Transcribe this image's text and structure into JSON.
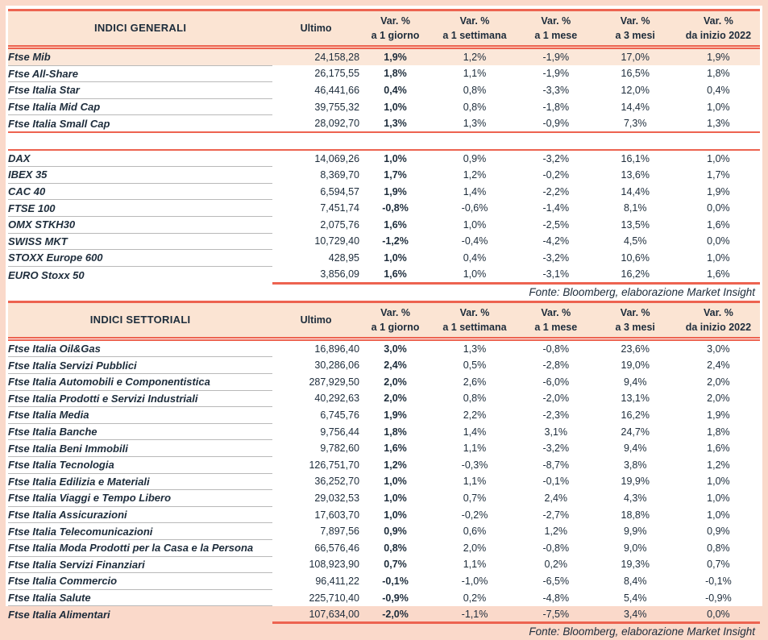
{
  "theme": {
    "accent_red": "#ed6350",
    "header_bg": "#fbe4d3",
    "highlight_row_bg": "#fbe7d9",
    "frame_bg": "#fad9ca",
    "text_color": "#1d2c3b",
    "row_separator_gray": "#b9b9b9"
  },
  "tables": [
    {
      "title": "INDICI GENERALI",
      "columns": [
        {
          "line1": "Ultimo",
          "line2": ""
        },
        {
          "line1": "Var. %",
          "line2": "a 1 giorno"
        },
        {
          "line1": "Var. %",
          "line2": "a 1 settimana"
        },
        {
          "line1": "Var. %",
          "line2": "a 1 mese"
        },
        {
          "line1": "Var. %",
          "line2": "a 3 mesi"
        },
        {
          "line1": "Var. %",
          "line2": "da inizio 2022"
        }
      ],
      "rows": [
        {
          "name": "Ftse Mib",
          "values": [
            "24,158,28",
            "1,9%",
            "1,2%",
            "-1,9%",
            "17,0%",
            "1,9%"
          ],
          "highlight": true
        },
        {
          "name": "Ftse All-Share",
          "values": [
            "26,175,55",
            "1,8%",
            "1,1%",
            "-1,9%",
            "16,5%",
            "1,8%"
          ]
        },
        {
          "name": "Ftse Italia Star",
          "values": [
            "46,441,66",
            "0,4%",
            "0,8%",
            "-3,3%",
            "12,0%",
            "0,4%"
          ]
        },
        {
          "name": "Ftse Italia Mid Cap",
          "values": [
            "39,755,32",
            "1,0%",
            "0,8%",
            "-1,8%",
            "14,4%",
            "1,0%"
          ]
        },
        {
          "name": "Ftse Italia Small Cap",
          "values": [
            "28,092,70",
            "1,3%",
            "1,3%",
            "-0,9%",
            "7,3%",
            "1,3%"
          ],
          "divider_after": true
        },
        {
          "name": "DAX",
          "values": [
            "14,069,26",
            "1,0%",
            "0,9%",
            "-3,2%",
            "16,1%",
            "1,0%"
          ]
        },
        {
          "name": "IBEX 35",
          "values": [
            "8,369,70",
            "1,7%",
            "1,2%",
            "-0,2%",
            "13,6%",
            "1,7%"
          ]
        },
        {
          "name": "CAC 40",
          "values": [
            "6,594,57",
            "1,9%",
            "1,4%",
            "-2,2%",
            "14,4%",
            "1,9%"
          ]
        },
        {
          "name": "FTSE 100",
          "values": [
            "7,451,74",
            "-0,8%",
            "-0,6%",
            "-1,4%",
            "8,1%",
            "0,0%"
          ]
        },
        {
          "name": "OMX STKH30",
          "values": [
            "2,075,76",
            "1,6%",
            "1,0%",
            "-2,5%",
            "13,5%",
            "1,6%"
          ]
        },
        {
          "name": "SWISS MKT",
          "values": [
            "10,729,40",
            "-1,2%",
            "-0,4%",
            "-4,2%",
            "4,5%",
            "0,0%"
          ]
        },
        {
          "name": "STOXX Europe 600",
          "values": [
            "428,95",
            "1,0%",
            "0,4%",
            "-3,2%",
            "10,6%",
            "1,0%"
          ]
        },
        {
          "name": "EURO Stoxx 50",
          "values": [
            "3,856,09",
            "1,6%",
            "1,0%",
            "-3,1%",
            "16,2%",
            "1,6%"
          ]
        }
      ],
      "source": "Fonte: Bloomberg, elaborazione Market Insight"
    },
    {
      "title": "INDICI SETTORIALI",
      "columns": [
        {
          "line1": "Ultimo",
          "line2": ""
        },
        {
          "line1": "Var. %",
          "line2": "a 1 giorno"
        },
        {
          "line1": "Var. %",
          "line2": "a 1 settimana"
        },
        {
          "line1": "Var. %",
          "line2": "a 1 mese"
        },
        {
          "line1": "Var. %",
          "line2": "a 3 mesi"
        },
        {
          "line1": "Var. %",
          "line2": "da inizio 2022"
        }
      ],
      "rows": [
        {
          "name": "Ftse Italia Oil&Gas",
          "values": [
            "16,896,40",
            "3,0%",
            "1,3%",
            "-0,8%",
            "23,6%",
            "3,0%"
          ]
        },
        {
          "name": "Ftse Italia Servizi Pubblici",
          "values": [
            "30,286,06",
            "2,4%",
            "0,5%",
            "-2,8%",
            "19,0%",
            "2,4%"
          ]
        },
        {
          "name": "Ftse Italia Automobili e Componentistica",
          "values": [
            "287,929,50",
            "2,0%",
            "2,6%",
            "-6,0%",
            "9,4%",
            "2,0%"
          ]
        },
        {
          "name": "Ftse Italia Prodotti e Servizi Industriali",
          "values": [
            "40,292,63",
            "2,0%",
            "0,8%",
            "-2,0%",
            "13,1%",
            "2,0%"
          ]
        },
        {
          "name": "Ftse Italia Media",
          "values": [
            "6,745,76",
            "1,9%",
            "2,2%",
            "-2,3%",
            "16,2%",
            "1,9%"
          ]
        },
        {
          "name": "Ftse Italia Banche",
          "values": [
            "9,756,44",
            "1,8%",
            "1,4%",
            "3,1%",
            "24,7%",
            "1,8%"
          ]
        },
        {
          "name": "Ftse Italia Beni Immobili",
          "values": [
            "9,782,60",
            "1,6%",
            "1,1%",
            "-3,2%",
            "9,4%",
            "1,6%"
          ]
        },
        {
          "name": "Ftse Italia Tecnologia",
          "values": [
            "126,751,70",
            "1,2%",
            "-0,3%",
            "-8,7%",
            "3,8%",
            "1,2%"
          ]
        },
        {
          "name": "Ftse Italia Edilizia e Materiali",
          "values": [
            "36,252,70",
            "1,0%",
            "1,1%",
            "-0,1%",
            "19,9%",
            "1,0%"
          ]
        },
        {
          "name": "Ftse Italia Viaggi e Tempo Libero",
          "values": [
            "29,032,53",
            "1,0%",
            "0,7%",
            "2,4%",
            "4,3%",
            "1,0%"
          ]
        },
        {
          "name": "Ftse Italia Assicurazioni",
          "values": [
            "17,603,70",
            "1,0%",
            "-0,2%",
            "-2,7%",
            "18,8%",
            "1,0%"
          ]
        },
        {
          "name": "Ftse Italia Telecomunicazioni",
          "values": [
            "7,897,56",
            "0,9%",
            "0,6%",
            "1,2%",
            "9,9%",
            "0,9%"
          ]
        },
        {
          "name": "Ftse Italia Moda Prodotti per la Casa e la Persona",
          "values": [
            "66,576,46",
            "0,8%",
            "2,0%",
            "-0,8%",
            "9,0%",
            "0,8%"
          ]
        },
        {
          "name": "Ftse Italia Servizi Finanziari",
          "values": [
            "108,923,90",
            "0,7%",
            "1,1%",
            "0,2%",
            "19,3%",
            "0,7%"
          ]
        },
        {
          "name": "Ftse Italia Commercio",
          "values": [
            "96,411,22",
            "-0,1%",
            "-1,0%",
            "-6,5%",
            "8,4%",
            "-0,1%"
          ]
        },
        {
          "name": "Ftse Italia Salute",
          "values": [
            "225,710,40",
            "-0,9%",
            "0,2%",
            "-4,8%",
            "5,4%",
            "-0,9%"
          ]
        },
        {
          "name": "Ftse Italia Alimentari",
          "values": [
            "107,634,00",
            "-2,0%",
            "-1,1%",
            "-7,5%",
            "3,4%",
            "0,0%"
          ]
        }
      ],
      "source": "Fonte: Bloomberg, elaborazione Market Insight"
    }
  ]
}
